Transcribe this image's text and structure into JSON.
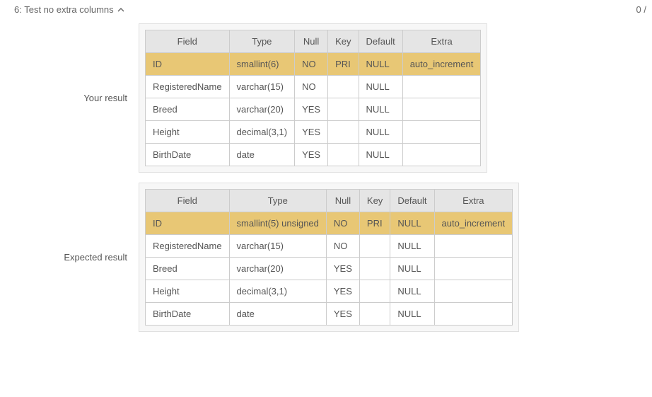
{
  "header": {
    "title": "6: Test no extra columns",
    "score": "0 /"
  },
  "your": {
    "label": "Your result",
    "columns": [
      "Field",
      "Type",
      "Null",
      "Key",
      "Default",
      "Extra"
    ],
    "rows": [
      {
        "hl": true,
        "cells": [
          "ID",
          "smallint(6)",
          "NO",
          "PRI",
          "NULL",
          "auto_increment"
        ]
      },
      {
        "hl": false,
        "cells": [
          "RegisteredName",
          "varchar(15)",
          "NO",
          "",
          "NULL",
          ""
        ]
      },
      {
        "hl": false,
        "cells": [
          "Breed",
          "varchar(20)",
          "YES",
          "",
          "NULL",
          ""
        ]
      },
      {
        "hl": false,
        "cells": [
          "Height",
          "decimal(3,1)",
          "YES",
          "",
          "NULL",
          ""
        ]
      },
      {
        "hl": false,
        "cells": [
          "BirthDate",
          "date",
          "YES",
          "",
          "NULL",
          ""
        ]
      }
    ]
  },
  "expected": {
    "label": "Expected result",
    "columns": [
      "Field",
      "Type",
      "Null",
      "Key",
      "Default",
      "Extra"
    ],
    "rows": [
      {
        "hl": true,
        "cells": [
          "ID",
          "smallint(5) unsigned",
          "NO",
          "PRI",
          "NULL",
          "auto_increment"
        ]
      },
      {
        "hl": false,
        "cells": [
          "RegisteredName",
          "varchar(15)",
          "NO",
          "",
          "NULL",
          ""
        ]
      },
      {
        "hl": false,
        "cells": [
          "Breed",
          "varchar(20)",
          "YES",
          "",
          "NULL",
          ""
        ]
      },
      {
        "hl": false,
        "cells": [
          "Height",
          "decimal(3,1)",
          "YES",
          "",
          "NULL",
          ""
        ]
      },
      {
        "hl": false,
        "cells": [
          "BirthDate",
          "date",
          "YES",
          "",
          "NULL",
          ""
        ]
      }
    ]
  },
  "style": {
    "highlight_bg": "#e8c775",
    "header_bg": "#e5e5e5",
    "border_color": "#cccccc",
    "wrap_bg": "#f7f7f7",
    "text_color": "#555555",
    "font_size_pt": 10
  }
}
